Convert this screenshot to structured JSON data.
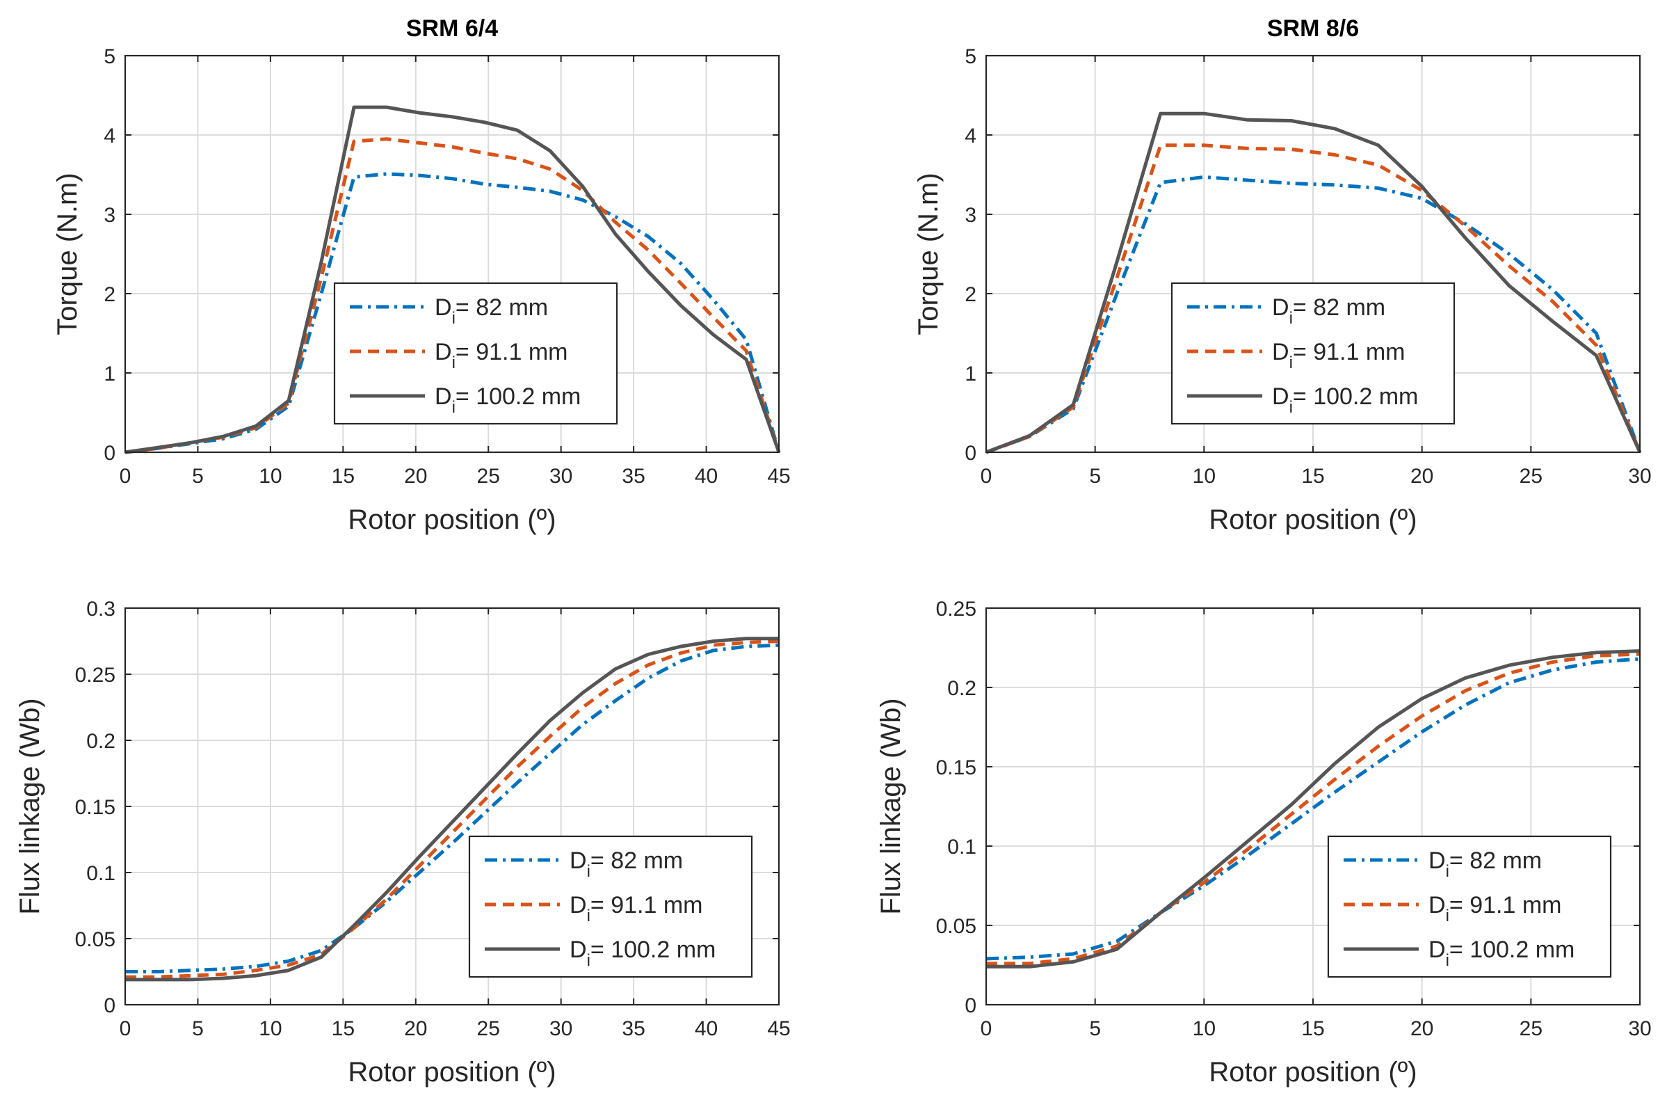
{
  "colors": {
    "blue": "#0072bd",
    "orange": "#d95319",
    "gray": "#555555"
  },
  "chart_data": [
    {
      "type": "line",
      "title": "SRM 6/4",
      "xlabel": "Rotor position (º)",
      "ylabel": "Torque (N.m)",
      "xlim": [
        0,
        45
      ],
      "ylim": [
        0,
        5
      ],
      "xticks": [
        "0",
        "5",
        "10",
        "15",
        "20",
        "25",
        "30",
        "35",
        "40",
        "45"
      ],
      "yticks": [
        "0",
        "1",
        "2",
        "3",
        "4",
        "5"
      ],
      "grid": true,
      "legend": "lower-center",
      "series": [
        {
          "name": "Di= 82 mm",
          "label_main": "D",
          "label_sub": "i",
          "label_rest": "= 82 mm",
          "color_key": "blue",
          "dash": "18 8 4 8",
          "x": [
            0,
            2.25,
            4.5,
            6.75,
            9,
            11.25,
            13.5,
            15.75,
            18,
            20.25,
            22.5,
            24.75,
            27,
            29.25,
            31.5,
            33.75,
            36,
            38.25,
            40.5,
            42.75,
            45
          ],
          "y": [
            0,
            0.05,
            0.11,
            0.17,
            0.29,
            0.58,
            2.0,
            3.47,
            3.51,
            3.49,
            3.45,
            3.38,
            3.34,
            3.29,
            3.18,
            2.97,
            2.72,
            2.38,
            1.92,
            1.42,
            0
          ]
        },
        {
          "name": "Di= 91.1 mm",
          "label_main": "D",
          "label_sub": "i",
          "label_rest": "= 91.1 mm",
          "color_key": "orange",
          "dash": "16 10",
          "x": [
            0,
            2.25,
            4.5,
            6.75,
            9,
            11.25,
            13.5,
            15.75,
            18,
            20.25,
            22.5,
            24.75,
            27,
            29.25,
            31.5,
            33.75,
            36,
            38.25,
            40.5,
            42.75,
            45
          ],
          "y": [
            0,
            0.05,
            0.12,
            0.19,
            0.31,
            0.62,
            2.2,
            3.92,
            3.95,
            3.9,
            3.85,
            3.77,
            3.7,
            3.57,
            3.3,
            2.9,
            2.55,
            2.13,
            1.7,
            1.28,
            0
          ]
        },
        {
          "name": "Di= 100.2 mm",
          "label_main": "D",
          "label_sub": "i",
          "label_rest": "= 100.2 mm",
          "color_key": "gray",
          "dash": "",
          "x": [
            0,
            2.25,
            4.5,
            6.75,
            9,
            11.25,
            13.5,
            15.75,
            18,
            20.25,
            22.5,
            24.75,
            27,
            29.25,
            31.5,
            33.75,
            36,
            38.25,
            40.5,
            42.75,
            45
          ],
          "y": [
            0,
            0.06,
            0.12,
            0.2,
            0.33,
            0.65,
            2.4,
            4.35,
            4.35,
            4.28,
            4.23,
            4.16,
            4.06,
            3.8,
            3.35,
            2.75,
            2.28,
            1.85,
            1.48,
            1.17,
            0
          ]
        }
      ]
    },
    {
      "type": "line",
      "title": "SRM 8/6",
      "xlabel": "Rotor position (º)",
      "ylabel": "Torque (N.m)",
      "xlim": [
        0,
        30
      ],
      "ylim": [
        0,
        5
      ],
      "xticks": [
        "0",
        "5",
        "10",
        "15",
        "20",
        "25",
        "30"
      ],
      "yticks": [
        "0",
        "1",
        "2",
        "3",
        "4",
        "5"
      ],
      "grid": true,
      "legend": "lower-center",
      "series": [
        {
          "name": "Di= 82 mm",
          "label_main": "D",
          "label_sub": "i",
          "label_rest": "= 82 mm",
          "color_key": "blue",
          "dash": "18 8 4 8",
          "x": [
            0,
            2,
            4,
            6,
            8,
            10,
            12,
            14,
            16,
            18,
            20,
            22,
            24,
            26,
            28,
            30
          ],
          "y": [
            0,
            0.2,
            0.55,
            2.0,
            3.4,
            3.47,
            3.43,
            3.39,
            3.37,
            3.33,
            3.2,
            2.88,
            2.5,
            2.05,
            1.5,
            0
          ]
        },
        {
          "name": "Di= 91.1 mm",
          "label_main": "D",
          "label_sub": "i",
          "label_rest": "= 91.1 mm",
          "color_key": "orange",
          "dash": "16 10",
          "x": [
            0,
            2,
            4,
            6,
            8,
            10,
            12,
            14,
            16,
            18,
            20,
            22,
            24,
            26,
            28,
            30
          ],
          "y": [
            0,
            0.2,
            0.57,
            2.2,
            3.87,
            3.87,
            3.83,
            3.82,
            3.75,
            3.62,
            3.3,
            2.85,
            2.35,
            1.9,
            1.35,
            0
          ]
        },
        {
          "name": "Di= 100.2 mm",
          "label_main": "D",
          "label_sub": "i",
          "label_rest": "= 100.2 mm",
          "color_key": "gray",
          "dash": "",
          "x": [
            0,
            2,
            4,
            6,
            8,
            10,
            12,
            14,
            16,
            18,
            20,
            22,
            24,
            26,
            28,
            30
          ],
          "y": [
            0,
            0.21,
            0.6,
            2.4,
            4.27,
            4.27,
            4.19,
            4.18,
            4.08,
            3.87,
            3.35,
            2.7,
            2.1,
            1.65,
            1.22,
            0
          ]
        }
      ]
    },
    {
      "type": "line",
      "title": "",
      "xlabel": "Rotor position (º)",
      "ylabel": "Flux linkage (Wb)",
      "xlim": [
        0,
        45
      ],
      "ylim": [
        0,
        0.3
      ],
      "xticks": [
        "0",
        "5",
        "10",
        "15",
        "20",
        "25",
        "30",
        "35",
        "40",
        "45"
      ],
      "yticks": [
        "0",
        "0.05",
        "0.1",
        "0.15",
        "0.2",
        "0.25",
        "0.3"
      ],
      "grid": true,
      "legend": "lower-right",
      "series": [
        {
          "name": "Di= 82 mm",
          "label_main": "D",
          "label_sub": "i",
          "label_rest": "= 82 mm",
          "color_key": "blue",
          "dash": "18 8 4 8",
          "x": [
            0,
            2.25,
            4.5,
            6.75,
            9,
            11.25,
            13.5,
            15.75,
            18,
            20.25,
            22.5,
            24.75,
            27,
            29.25,
            31.5,
            33.75,
            36,
            38.25,
            40.5,
            42.75,
            45
          ],
          "y": [
            0.025,
            0.025,
            0.026,
            0.027,
            0.029,
            0.033,
            0.041,
            0.058,
            0.078,
            0.1,
            0.122,
            0.145,
            0.168,
            0.19,
            0.212,
            0.23,
            0.247,
            0.26,
            0.268,
            0.271,
            0.272
          ]
        },
        {
          "name": "Di= 91.1 mm",
          "label_main": "D",
          "label_sub": "i",
          "label_rest": "= 91.1 mm",
          "color_key": "orange",
          "dash": "16 10",
          "x": [
            0,
            2.25,
            4.5,
            6.75,
            9,
            11.25,
            13.5,
            15.75,
            18,
            20.25,
            22.5,
            24.75,
            27,
            29.25,
            31.5,
            33.75,
            36,
            38.25,
            40.5,
            42.75,
            45
          ],
          "y": [
            0.021,
            0.021,
            0.022,
            0.023,
            0.026,
            0.03,
            0.038,
            0.058,
            0.08,
            0.105,
            0.13,
            0.155,
            0.18,
            0.203,
            0.225,
            0.243,
            0.257,
            0.266,
            0.272,
            0.274,
            0.275
          ]
        },
        {
          "name": "Di= 100.2 mm",
          "label_main": "D",
          "label_sub": "i",
          "label_rest": "= 100.2 mm",
          "color_key": "gray",
          "dash": "",
          "x": [
            0,
            2.25,
            4.5,
            6.75,
            9,
            11.25,
            13.5,
            15.75,
            18,
            20.25,
            22.5,
            24.75,
            27,
            29.25,
            31.5,
            33.75,
            36,
            38.25,
            40.5,
            42.75,
            45
          ],
          "y": [
            0.019,
            0.019,
            0.019,
            0.02,
            0.022,
            0.026,
            0.036,
            0.06,
            0.085,
            0.112,
            0.138,
            0.164,
            0.19,
            0.215,
            0.236,
            0.254,
            0.265,
            0.271,
            0.275,
            0.277,
            0.277
          ]
        }
      ]
    },
    {
      "type": "line",
      "title": "",
      "xlabel": "Rotor position (º)",
      "ylabel": "Flux linkage (Wb)",
      "xlim": [
        0,
        30
      ],
      "ylim": [
        0,
        0.25
      ],
      "xticks": [
        "0",
        "5",
        "10",
        "15",
        "20",
        "25",
        "30"
      ],
      "yticks": [
        "0",
        "0.05",
        "0.1",
        "0.15",
        "0.2",
        "0.25"
      ],
      "grid": true,
      "legend": "lower-right",
      "series": [
        {
          "name": "Di= 82 mm",
          "label_main": "D",
          "label_sub": "i",
          "label_rest": "= 82 mm",
          "color_key": "blue",
          "dash": "18 8 4 8",
          "x": [
            0,
            2,
            4,
            6,
            8,
            10,
            12,
            14,
            16,
            18,
            20,
            22,
            24,
            26,
            28,
            30
          ],
          "y": [
            0.029,
            0.03,
            0.032,
            0.04,
            0.058,
            0.075,
            0.094,
            0.114,
            0.134,
            0.153,
            0.172,
            0.189,
            0.203,
            0.211,
            0.216,
            0.218
          ]
        },
        {
          "name": "Di= 91.1 mm",
          "label_main": "D",
          "label_sub": "i",
          "label_rest": "= 91.1 mm",
          "color_key": "orange",
          "dash": "16 10",
          "x": [
            0,
            2,
            4,
            6,
            8,
            10,
            12,
            14,
            16,
            18,
            20,
            22,
            24,
            26,
            28,
            30
          ],
          "y": [
            0.026,
            0.026,
            0.029,
            0.037,
            0.058,
            0.077,
            0.098,
            0.12,
            0.142,
            0.163,
            0.182,
            0.198,
            0.209,
            0.216,
            0.22,
            0.221
          ]
        },
        {
          "name": "Di= 100.2 mm",
          "label_main": "D",
          "label_sub": "i",
          "label_rest": "= 100.2 mm",
          "color_key": "gray",
          "dash": "",
          "x": [
            0,
            2,
            4,
            6,
            8,
            10,
            12,
            14,
            16,
            18,
            20,
            22,
            24,
            26,
            28,
            30
          ],
          "y": [
            0.024,
            0.024,
            0.027,
            0.035,
            0.058,
            0.08,
            0.103,
            0.126,
            0.152,
            0.175,
            0.193,
            0.206,
            0.214,
            0.219,
            0.222,
            0.223
          ]
        }
      ]
    }
  ]
}
